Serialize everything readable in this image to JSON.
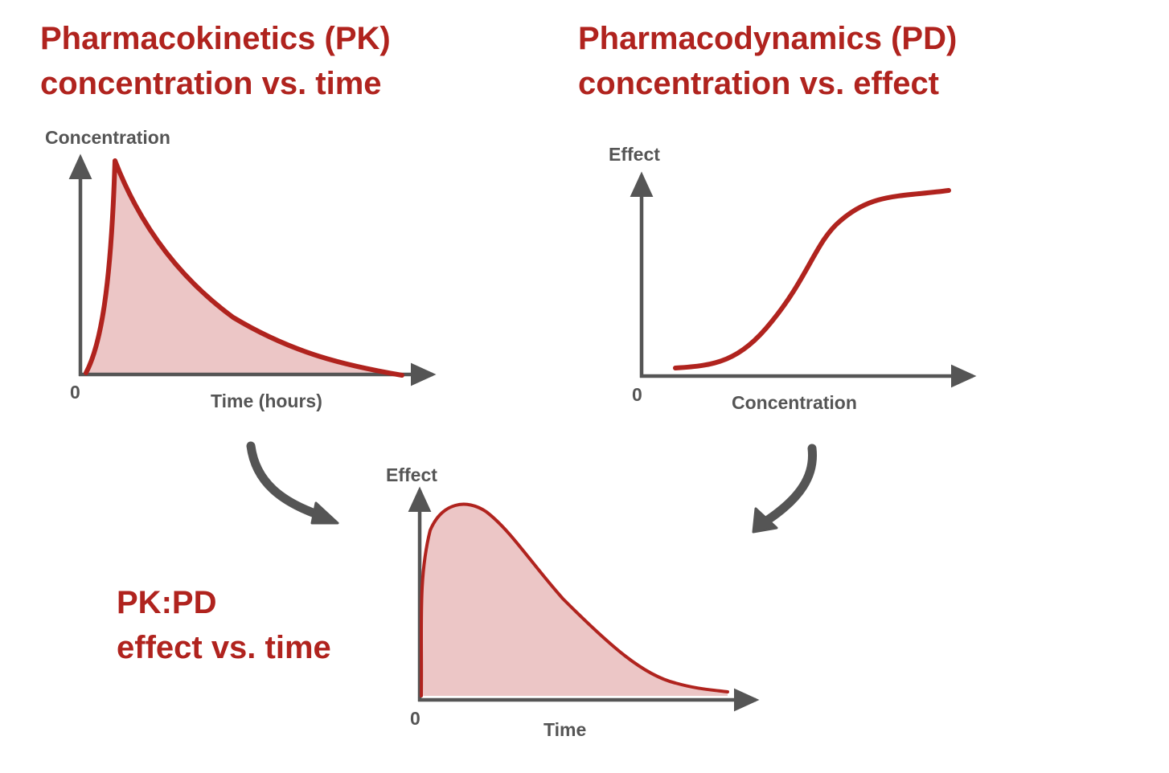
{
  "colors": {
    "accent": "#b0231e",
    "fill": "#ecc6c6",
    "axis": "#555555",
    "text": "#555555"
  },
  "pk": {
    "title_line1": "Pharmacokinetics (PK)",
    "title_line2": "concentration vs. time",
    "y_label": "Concentration",
    "x_label": "Time (hours)",
    "origin_label": "0"
  },
  "pd": {
    "title_line1": "Pharmacodynamics (PD)",
    "title_line2": "concentration vs. effect",
    "y_label": "Effect",
    "x_label": "Concentration",
    "origin_label": "0"
  },
  "pkpd": {
    "title_line1": "PK:PD",
    "title_line2": "effect vs. time",
    "y_label": "Effect",
    "x_label": "Time",
    "origin_label": "0"
  }
}
